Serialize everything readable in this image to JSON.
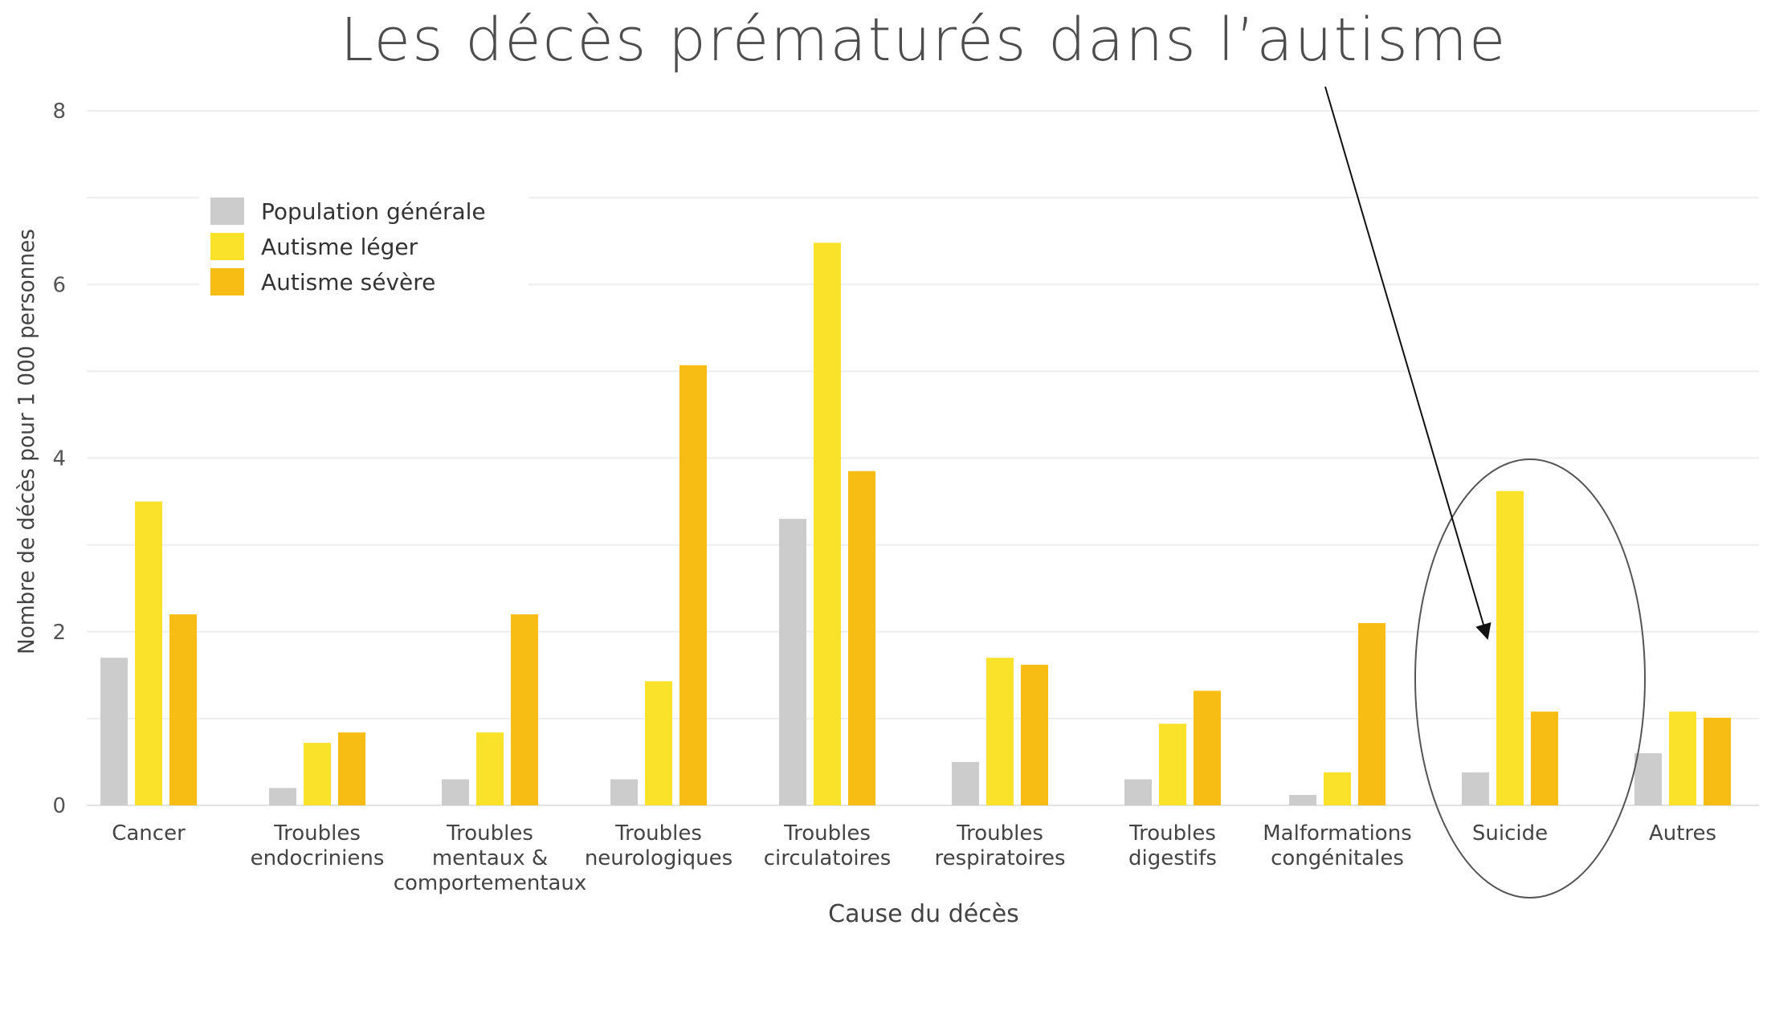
{
  "chart_data": {
    "type": "bar",
    "title": "Les décès prématurés dans l’autisme",
    "xlabel": "Cause du décès",
    "ylabel": "Nombre de décès pour 1 000 personnes",
    "ylim": [
      0,
      8
    ],
    "yticks": [
      "0",
      "2",
      "4",
      "6",
      "8"
    ],
    "grid": true,
    "legend_position": "top-left",
    "categories": [
      [
        "Cancer"
      ],
      [
        "Troubles",
        "endocriniens"
      ],
      [
        "Troubles",
        "mentaux &",
        "comportementaux"
      ],
      [
        "Troubles",
        "neurologiques"
      ],
      [
        "Troubles",
        "circulatoires"
      ],
      [
        "Troubles",
        "respiratoires"
      ],
      [
        "Troubles",
        "digestifs"
      ],
      [
        "Malformations",
        "congénitales"
      ],
      [
        "Suicide"
      ],
      [
        "Autres"
      ]
    ],
    "series": [
      {
        "name": "Population générale",
        "color": "#cccccc",
        "values": [
          1.7,
          0.2,
          0.3,
          0.3,
          3.3,
          0.5,
          0.3,
          0.12,
          0.38,
          0.6
        ]
      },
      {
        "name": "Autisme léger",
        "color": "#fbe22a",
        "values": [
          3.5,
          0.72,
          0.84,
          1.43,
          6.48,
          1.7,
          0.94,
          0.38,
          3.62,
          1.08
        ]
      },
      {
        "name": "Autisme sévère",
        "color": "#f8bd14",
        "values": [
          2.2,
          0.84,
          2.2,
          5.07,
          3.85,
          1.62,
          1.32,
          2.1,
          1.08,
          1.01
        ]
      }
    ],
    "annotations": [
      {
        "kind": "ellipse",
        "target_category": "Suicide"
      },
      {
        "kind": "arrow",
        "target_category": "Suicide"
      }
    ]
  }
}
